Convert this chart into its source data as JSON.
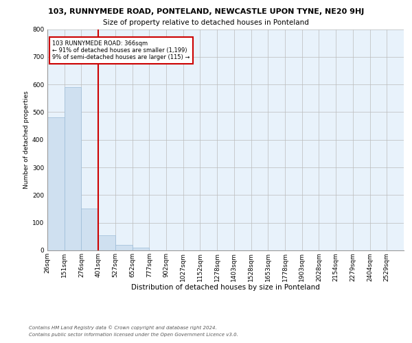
{
  "title": "103, RUNNYMEDE ROAD, PONTELAND, NEWCASTLE UPON TYNE, NE20 9HJ",
  "subtitle": "Size of property relative to detached houses in Ponteland",
  "xlabel": "Distribution of detached houses by size in Ponteland",
  "ylabel": "Number of detached properties",
  "footer_line1": "Contains HM Land Registry data © Crown copyright and database right 2024.",
  "footer_line2": "Contains public sector information licensed under the Open Government Licence v3.0.",
  "bar_labels": [
    "26sqm",
    "151sqm",
    "276sqm",
    "401sqm",
    "527sqm",
    "652sqm",
    "777sqm",
    "902sqm",
    "1027sqm",
    "1152sqm",
    "1278sqm",
    "1403sqm",
    "1528sqm",
    "1653sqm",
    "1778sqm",
    "1903sqm",
    "2028sqm",
    "2154sqm",
    "2279sqm",
    "2404sqm",
    "2529sqm"
  ],
  "bar_values": [
    482,
    591,
    152,
    55,
    21,
    10,
    0,
    0,
    0,
    0,
    0,
    0,
    0,
    0,
    0,
    0,
    0,
    0,
    0,
    0,
    0
  ],
  "bar_color": "#cfe0f0",
  "bar_edge_color": "#9bbcd8",
  "grid_color": "#bbbbbb",
  "bg_color": "#e8f2fb",
  "property_line_x": 3.0,
  "property_line_color": "#cc0000",
  "annotation_text": "103 RUNNYMEDE ROAD: 366sqm\n← 91% of detached houses are smaller (1,199)\n9% of semi-detached houses are larger (115) →",
  "annotation_box_color": "#cc0000",
  "ylim": [
    0,
    800
  ],
  "yticks": [
    0,
    100,
    200,
    300,
    400,
    500,
    600,
    700,
    800
  ],
  "title_fontsize": 8.0,
  "subtitle_fontsize": 7.5,
  "xlabel_fontsize": 7.5,
  "ylabel_fontsize": 6.5,
  "tick_fontsize": 6.5,
  "ann_fontsize": 6.0,
  "footer_fontsize": 5.0
}
